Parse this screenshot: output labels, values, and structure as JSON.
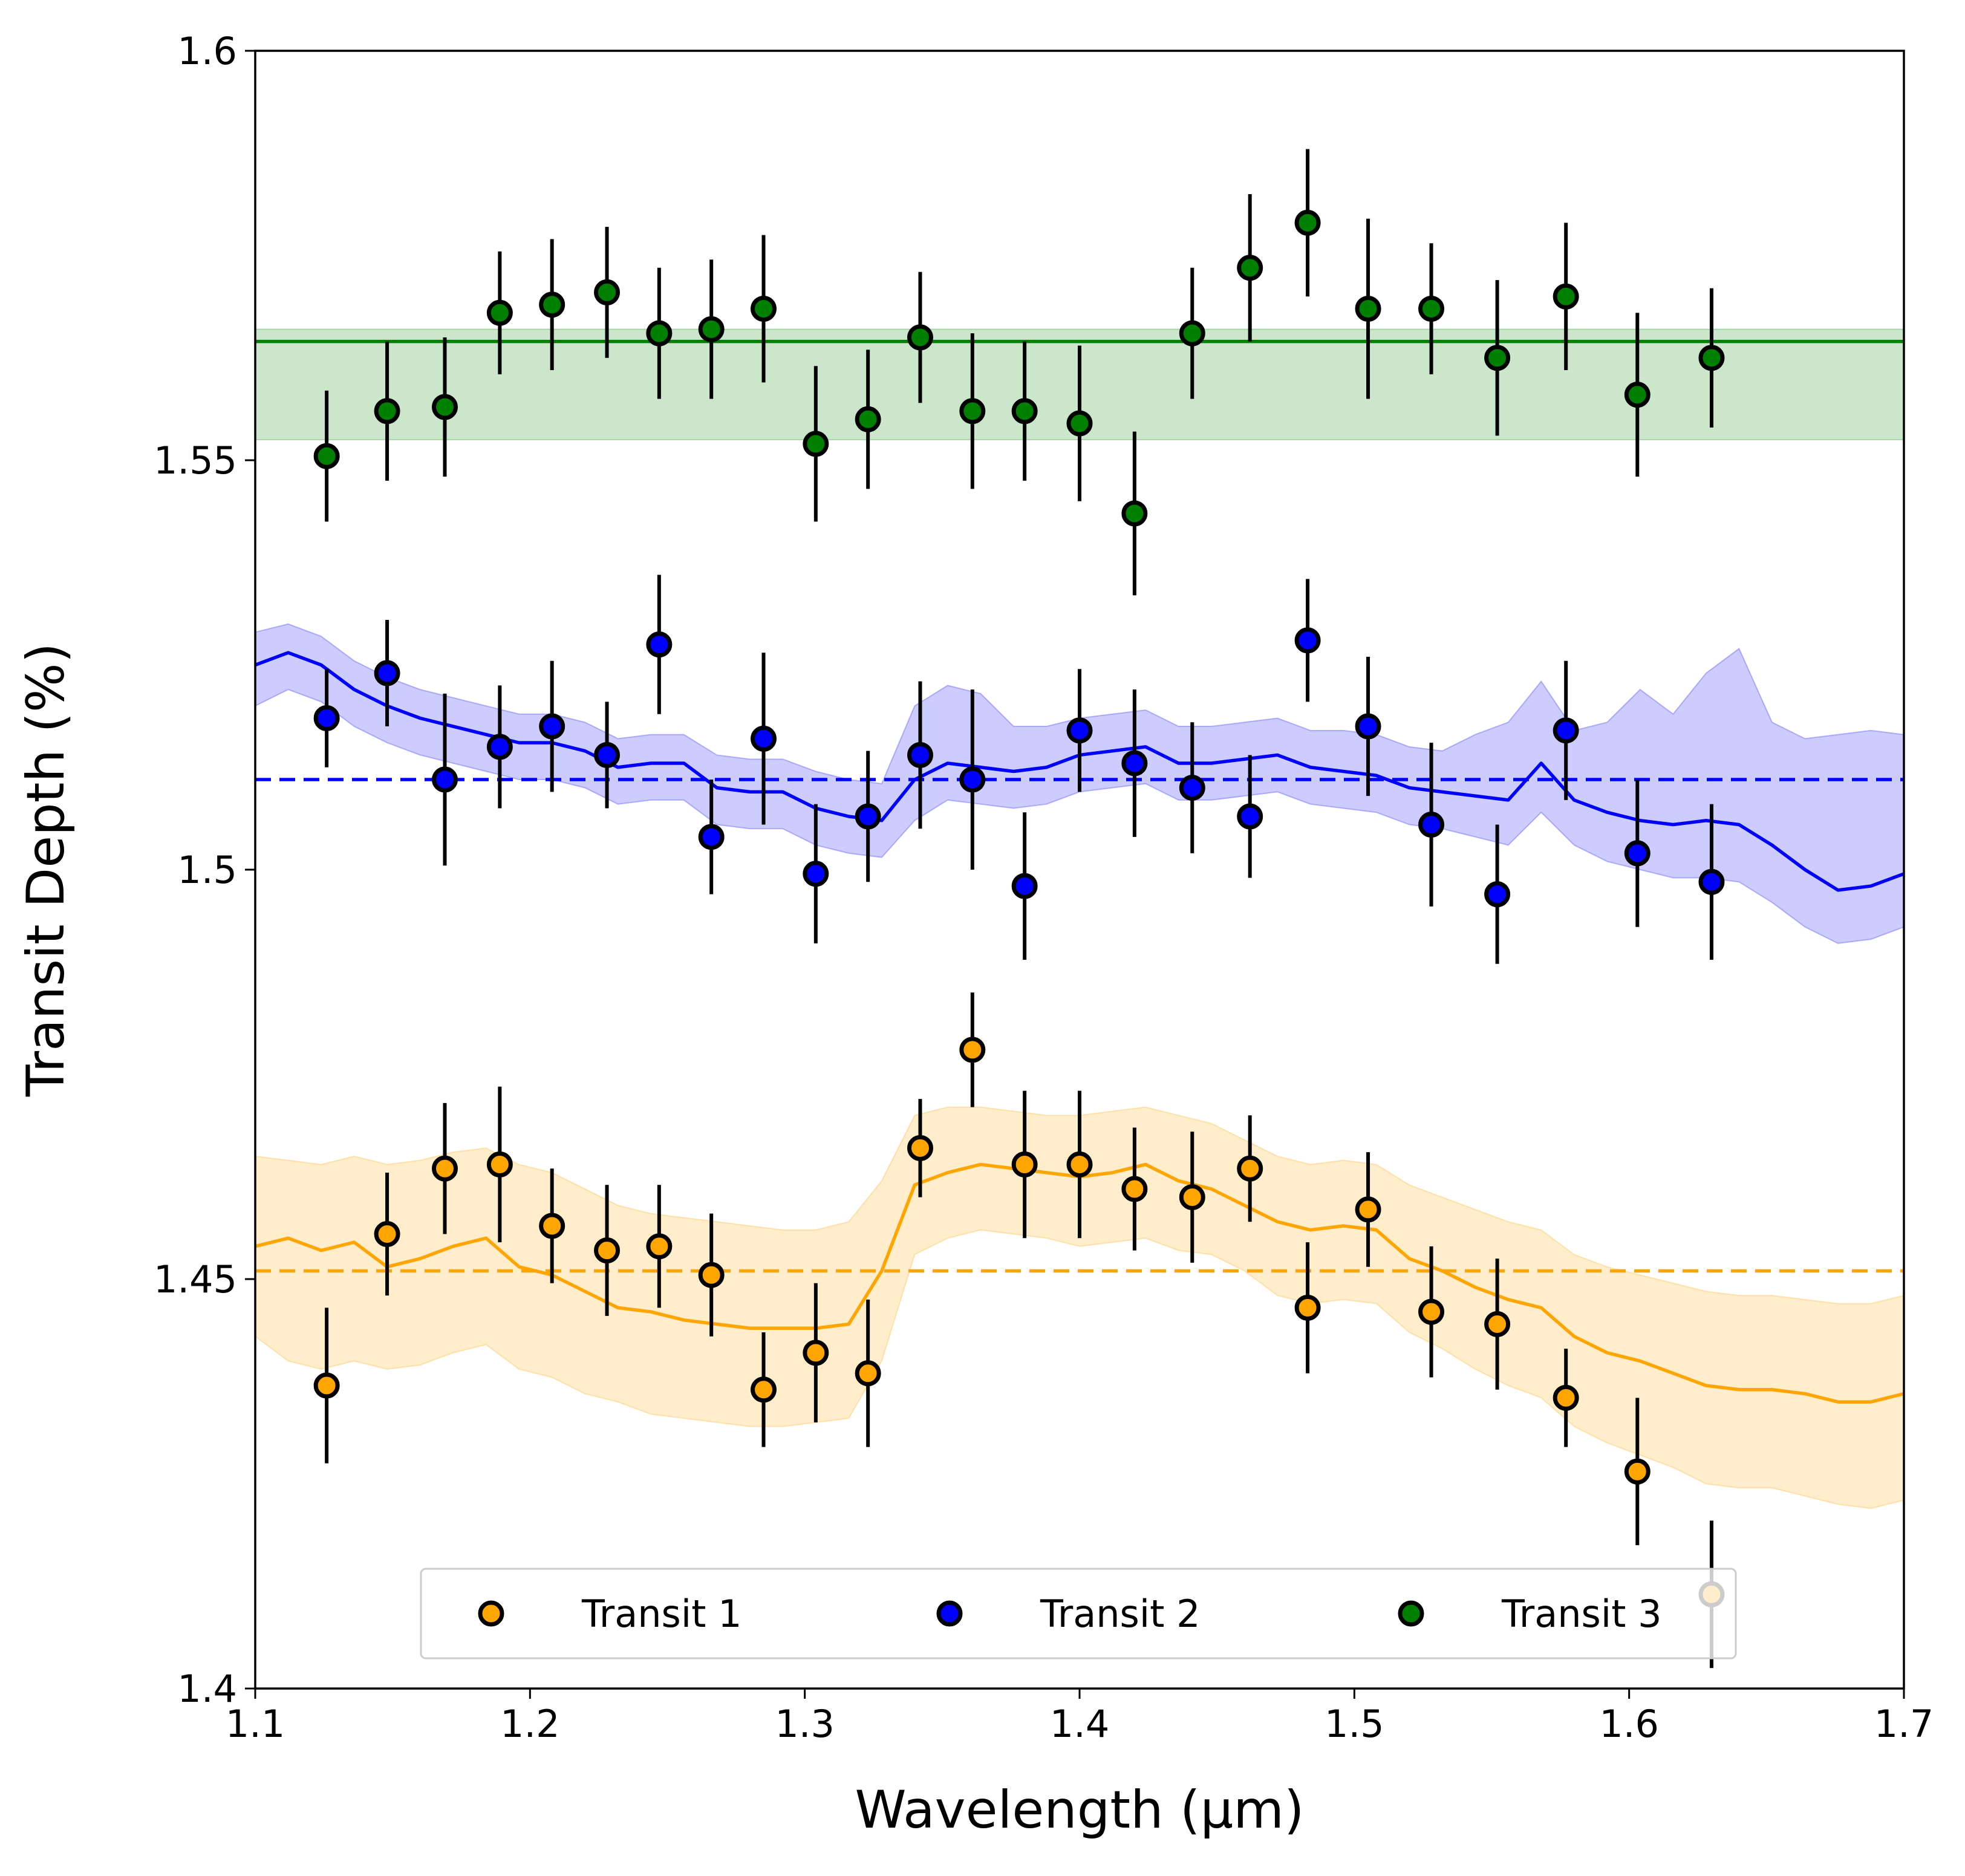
{
  "chart_data": {
    "type": "scatter",
    "xlabel": "Wavelength (μm)",
    "ylabel": "Transit Depth (%)",
    "xlim": [
      1.1,
      1.7
    ],
    "ylim": [
      1.4,
      1.6
    ],
    "xticks": [
      1.1,
      1.2,
      1.3,
      1.4,
      1.5,
      1.6,
      1.7
    ],
    "xtick_labels": [
      "1.1",
      "1.2",
      "1.3",
      "1.4",
      "1.5",
      "1.6",
      "1.7"
    ],
    "yticks": [
      1.4,
      1.45,
      1.5,
      1.55,
      1.6
    ],
    "ytick_labels": [
      "1.4",
      "1.45",
      "1.5",
      "1.55",
      "1.6"
    ],
    "grid": false,
    "legend_position": "bottom-center",
    "legend": [
      "Transit 1",
      "Transit 2",
      "Transit 3"
    ],
    "wavelengths": [
      1.126,
      1.148,
      1.169,
      1.189,
      1.208,
      1.228,
      1.247,
      1.266,
      1.285,
      1.304,
      1.323,
      1.342,
      1.361,
      1.38,
      1.4,
      1.42,
      1.441,
      1.462,
      1.483,
      1.505,
      1.528,
      1.552,
      1.577,
      1.603,
      1.63
    ],
    "series": [
      {
        "name": "Transit 1",
        "color": "#ffa500",
        "depth": [
          1.437,
          1.4555,
          1.4635,
          1.464,
          1.4565,
          1.4535,
          1.454,
          1.4505,
          1.4365,
          1.441,
          1.4385,
          1.466,
          1.478,
          1.464,
          1.464,
          1.461,
          1.46,
          1.4635,
          1.4465,
          1.4585,
          1.446,
          1.4445,
          1.4355,
          1.4265,
          1.4115
        ],
        "error": [
          0.0095,
          0.0075,
          0.008,
          0.0095,
          0.007,
          0.008,
          0.0075,
          0.0075,
          0.007,
          0.0085,
          0.009,
          0.006,
          0.007,
          0.009,
          0.009,
          0.0075,
          0.008,
          0.0065,
          0.008,
          0.007,
          0.008,
          0.008,
          0.006,
          0.009,
          0.009
        ],
        "model_wavelength": [
          1.1,
          1.112,
          1.124,
          1.136,
          1.148,
          1.16,
          1.172,
          1.184,
          1.196,
          1.208,
          1.22,
          1.232,
          1.244,
          1.256,
          1.268,
          1.28,
          1.292,
          1.304,
          1.316,
          1.328,
          1.34,
          1.352,
          1.364,
          1.376,
          1.388,
          1.4,
          1.412,
          1.424,
          1.436,
          1.448,
          1.46,
          1.472,
          1.484,
          1.496,
          1.508,
          1.52,
          1.532,
          1.544,
          1.556,
          1.568,
          1.58,
          1.592,
          1.604,
          1.616,
          1.628,
          1.64,
          1.652,
          1.664,
          1.676,
          1.688,
          1.7
        ],
        "model_depth": [
          1.454,
          1.455,
          1.4535,
          1.4545,
          1.4515,
          1.4525,
          1.454,
          1.455,
          1.4515,
          1.4505,
          1.4485,
          1.4465,
          1.446,
          1.445,
          1.4445,
          1.444,
          1.444,
          1.444,
          1.4445,
          1.451,
          1.4615,
          1.463,
          1.464,
          1.4635,
          1.463,
          1.4625,
          1.463,
          1.464,
          1.462,
          1.461,
          1.459,
          1.457,
          1.456,
          1.4565,
          1.456,
          1.4525,
          1.451,
          1.449,
          1.4475,
          1.4465,
          1.443,
          1.441,
          1.44,
          1.4385,
          1.437,
          1.4365,
          1.4365,
          1.436,
          1.435,
          1.435,
          1.436
        ],
        "model_lower": [
          1.443,
          1.44,
          1.439,
          1.44,
          1.439,
          1.4395,
          1.441,
          1.442,
          1.439,
          1.438,
          1.436,
          1.435,
          1.4335,
          1.433,
          1.4325,
          1.432,
          1.432,
          1.4325,
          1.433,
          1.44,
          1.453,
          1.455,
          1.456,
          1.4555,
          1.455,
          1.454,
          1.4545,
          1.455,
          1.4535,
          1.453,
          1.451,
          1.448,
          1.447,
          1.4475,
          1.447,
          1.4435,
          1.4415,
          1.439,
          1.437,
          1.4355,
          1.432,
          1.43,
          1.4285,
          1.427,
          1.425,
          1.4245,
          1.4245,
          1.4235,
          1.4225,
          1.422,
          1.423
        ],
        "model_upper": [
          1.465,
          1.4645,
          1.464,
          1.465,
          1.464,
          1.4645,
          1.4655,
          1.466,
          1.464,
          1.463,
          1.461,
          1.459,
          1.458,
          1.4575,
          1.457,
          1.4565,
          1.456,
          1.456,
          1.457,
          1.462,
          1.47,
          1.471,
          1.471,
          1.4705,
          1.47,
          1.47,
          1.4705,
          1.471,
          1.47,
          1.469,
          1.467,
          1.465,
          1.464,
          1.4645,
          1.464,
          1.4615,
          1.46,
          1.4585,
          1.457,
          1.456,
          1.453,
          1.4515,
          1.4505,
          1.4495,
          1.4485,
          1.448,
          1.448,
          1.4475,
          1.447,
          1.447,
          1.448
        ],
        "flat_level": 1.451
      },
      {
        "name": "Transit 2",
        "color": "#0000ff",
        "depth": [
          1.5185,
          1.524,
          1.511,
          1.515,
          1.5175,
          1.514,
          1.5275,
          1.504,
          1.516,
          1.4995,
          1.5065,
          1.514,
          1.511,
          1.498,
          1.517,
          1.513,
          1.51,
          1.5065,
          1.528,
          1.5175,
          1.5055,
          1.497,
          1.517,
          1.502,
          1.4985
        ],
        "error": [
          0.006,
          0.0065,
          0.0105,
          0.0075,
          0.008,
          0.0065,
          0.0085,
          0.007,
          0.0105,
          0.0085,
          0.008,
          0.009,
          0.011,
          0.009,
          0.0075,
          0.009,
          0.008,
          0.0075,
          0.0075,
          0.0085,
          0.01,
          0.0085,
          0.0085,
          0.009,
          0.0095
        ],
        "model_wavelength": [
          1.1,
          1.112,
          1.124,
          1.136,
          1.148,
          1.16,
          1.172,
          1.184,
          1.196,
          1.208,
          1.22,
          1.232,
          1.244,
          1.256,
          1.268,
          1.28,
          1.292,
          1.304,
          1.316,
          1.328,
          1.34,
          1.352,
          1.364,
          1.376,
          1.388,
          1.4,
          1.412,
          1.424,
          1.436,
          1.448,
          1.46,
          1.472,
          1.484,
          1.496,
          1.508,
          1.52,
          1.532,
          1.544,
          1.556,
          1.568,
          1.58,
          1.592,
          1.604,
          1.616,
          1.628,
          1.64,
          1.652,
          1.664,
          1.676,
          1.688,
          1.7
        ],
        "model_depth": [
          1.525,
          1.5265,
          1.525,
          1.522,
          1.52,
          1.5185,
          1.5175,
          1.5165,
          1.5155,
          1.5155,
          1.5145,
          1.5125,
          1.513,
          1.513,
          1.51,
          1.5095,
          1.5095,
          1.5075,
          1.5065,
          1.506,
          1.511,
          1.513,
          1.5125,
          1.512,
          1.5125,
          1.514,
          1.5145,
          1.515,
          1.513,
          1.513,
          1.5135,
          1.514,
          1.5125,
          1.512,
          1.5115,
          1.51,
          1.5095,
          1.509,
          1.5085,
          1.513,
          1.5085,
          1.507,
          1.506,
          1.5055,
          1.506,
          1.5055,
          1.503,
          1.5,
          1.4975,
          1.498,
          1.4995
        ],
        "model_lower": [
          1.52,
          1.522,
          1.5205,
          1.5175,
          1.5155,
          1.514,
          1.513,
          1.512,
          1.511,
          1.511,
          1.51,
          1.508,
          1.5085,
          1.5085,
          1.5055,
          1.505,
          1.505,
          1.503,
          1.502,
          1.5015,
          1.506,
          1.5085,
          1.508,
          1.5075,
          1.508,
          1.5095,
          1.51,
          1.5105,
          1.5085,
          1.5085,
          1.509,
          1.5095,
          1.508,
          1.5075,
          1.507,
          1.5055,
          1.505,
          1.504,
          1.503,
          1.507,
          1.503,
          1.501,
          1.5,
          1.499,
          1.499,
          1.4985,
          1.496,
          1.493,
          1.491,
          1.4915,
          1.493
        ],
        "model_upper": [
          1.529,
          1.53,
          1.5285,
          1.5255,
          1.5235,
          1.522,
          1.521,
          1.52,
          1.519,
          1.519,
          1.518,
          1.516,
          1.5165,
          1.5165,
          1.514,
          1.5135,
          1.5135,
          1.512,
          1.511,
          1.5105,
          1.52,
          1.5225,
          1.5215,
          1.5175,
          1.5175,
          1.5185,
          1.519,
          1.5195,
          1.5175,
          1.5175,
          1.518,
          1.5185,
          1.517,
          1.517,
          1.5165,
          1.515,
          1.5145,
          1.5165,
          1.518,
          1.523,
          1.517,
          1.518,
          1.522,
          1.519,
          1.524,
          1.527,
          1.518,
          1.516,
          1.5165,
          1.517,
          1.5165
        ],
        "flat_level": 1.511
      },
      {
        "name": "Transit 3",
        "color": "#008000",
        "depth": [
          1.5505,
          1.556,
          1.5565,
          1.568,
          1.569,
          1.5705,
          1.5655,
          1.566,
          1.5685,
          1.552,
          1.555,
          1.565,
          1.556,
          1.556,
          1.5545,
          1.5435,
          1.5655,
          1.5735,
          1.579,
          1.5685,
          1.5685,
          1.5625,
          1.57,
          1.558,
          1.5625
        ],
        "error": [
          0.008,
          0.0085,
          0.0085,
          0.0075,
          0.008,
          0.008,
          0.008,
          0.0085,
          0.009,
          0.0095,
          0.0085,
          0.008,
          0.0095,
          0.0085,
          0.0095,
          0.01,
          0.008,
          0.009,
          0.009,
          0.011,
          0.008,
          0.0095,
          0.009,
          0.01,
          0.0085
        ],
        "flat_level": 1.5645,
        "flat_lower": 1.5525,
        "flat_upper": 1.566
      }
    ]
  }
}
